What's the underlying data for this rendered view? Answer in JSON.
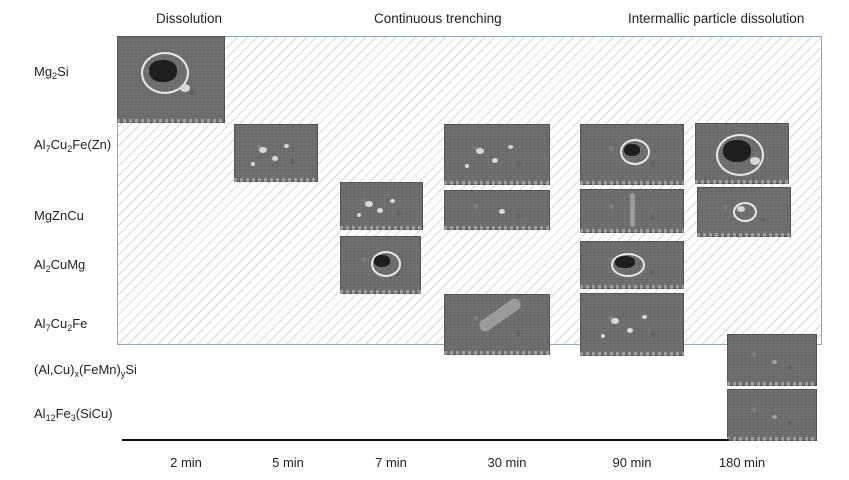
{
  "phases": {
    "dissolution": "Dissolution",
    "continuous_trenching": "Continuous trenching",
    "intermallic": "Intermallic particle dissolution"
  },
  "rows": [
    {
      "id": "mg2si",
      "parts": [
        [
          "Mg",
          ""
        ],
        [
          "2",
          "sub"
        ],
        [
          "Si",
          ""
        ]
      ]
    },
    {
      "id": "al7cu2fe_zn",
      "parts": [
        [
          "Al",
          ""
        ],
        [
          "7",
          "sub"
        ],
        [
          "Cu",
          ""
        ],
        [
          "2",
          "sub"
        ],
        [
          "Fe(Zn)",
          ""
        ]
      ]
    },
    {
      "id": "mgzncu",
      "parts": [
        [
          "MgZnCu",
          ""
        ]
      ]
    },
    {
      "id": "al2cumg",
      "parts": [
        [
          "Al",
          ""
        ],
        [
          "2",
          "sub"
        ],
        [
          "CuMg",
          ""
        ]
      ]
    },
    {
      "id": "al7cu2fe",
      "parts": [
        [
          "Al",
          ""
        ],
        [
          "7",
          "sub"
        ],
        [
          "Cu",
          ""
        ],
        [
          "2",
          "sub"
        ],
        [
          "Fe",
          ""
        ]
      ]
    },
    {
      "id": "alcu_femn_si",
      "parts": [
        [
          "(Al,Cu)",
          ""
        ],
        [
          "x",
          "sub"
        ],
        [
          "(FeMn)",
          ""
        ],
        [
          "y",
          "sub"
        ],
        [
          "Si",
          ""
        ]
      ]
    },
    {
      "id": "al12fe3_sicu",
      "parts": [
        [
          "Al",
          ""
        ],
        [
          "12",
          "sub"
        ],
        [
          "Fe",
          ""
        ],
        [
          "3",
          "sub"
        ],
        [
          "(SiCu)",
          ""
        ]
      ]
    }
  ],
  "times": [
    "2 min",
    "5 min",
    "7 min",
    "30 min",
    "90 min",
    "180 min"
  ],
  "micrographs": [
    {
      "row": "mg2si",
      "time": "2 min",
      "feature": "pit-large"
    },
    {
      "row": "al7cu2fe_zn",
      "time": "5 min",
      "feature": "particles"
    },
    {
      "row": "al7cu2fe_zn",
      "time": "30 min",
      "feature": "particles"
    },
    {
      "row": "al7cu2fe_zn",
      "time": "90 min",
      "feature": "pit"
    },
    {
      "row": "al7cu2fe_zn",
      "time": "180 min",
      "feature": "pit-large"
    },
    {
      "row": "mgzncu",
      "time": "7 min",
      "feature": "particles"
    },
    {
      "row": "mgzncu",
      "time": "30 min",
      "feature": "dot"
    },
    {
      "row": "mgzncu",
      "time": "90 min",
      "feature": "streak"
    },
    {
      "row": "mgzncu",
      "time": "180 min",
      "feature": "ring"
    },
    {
      "row": "al2cumg",
      "time": "7 min",
      "feature": "pit"
    },
    {
      "row": "al2cumg",
      "time": "90 min",
      "feature": "ring-dark"
    },
    {
      "row": "al7cu2fe",
      "time": "30 min",
      "feature": "elongated"
    },
    {
      "row": "al7cu2fe",
      "time": "90 min",
      "feature": "particles"
    },
    {
      "row": "alcu_femn_si",
      "time": "180 min",
      "feature": "faint"
    },
    {
      "row": "al12fe3_sicu",
      "time": "180 min",
      "feature": "faint"
    }
  ],
  "colors": {
    "hatch_border": "#8fa6c9",
    "hatch_line": "#d8d8d8",
    "axis": "#111111",
    "sem_base": "#6e6e6e"
  }
}
